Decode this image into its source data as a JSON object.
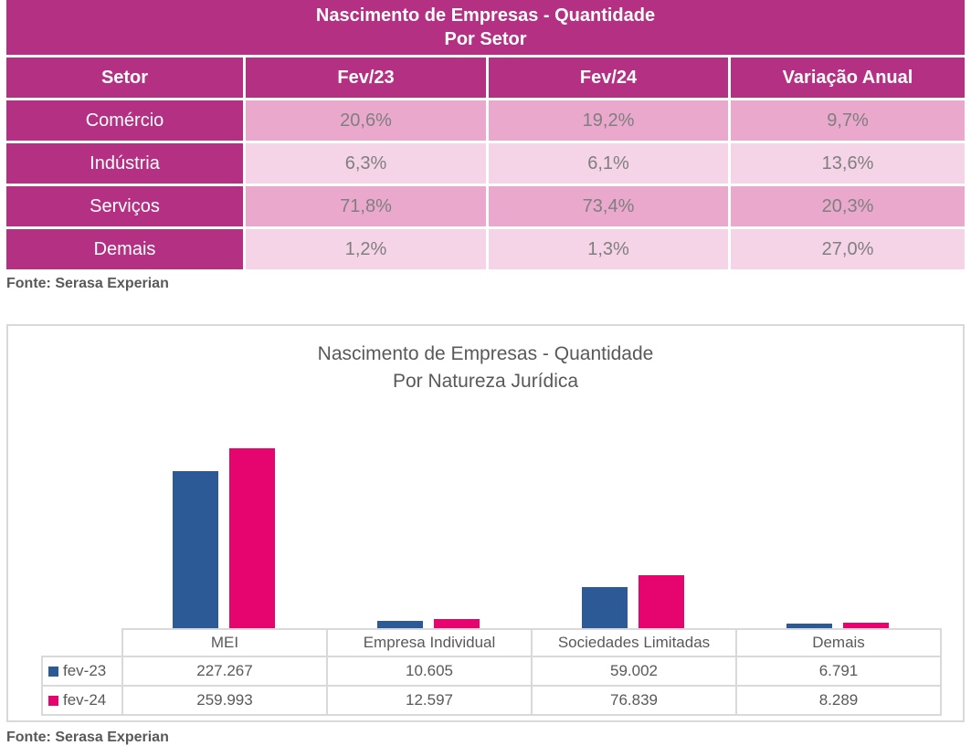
{
  "sector_table": {
    "title": "Nascimento de Empresas - Quantidade",
    "subtitle": "Por Setor",
    "columns": [
      "Setor",
      "Fev/23",
      "Fev/24",
      "Variação Anual"
    ],
    "rows": [
      {
        "label": "Comércio",
        "fev23": "20,6%",
        "fev24": "19,2%",
        "variacao": "9,7%"
      },
      {
        "label": "Indústria",
        "fev23": "6,3%",
        "fev24": "6,1%",
        "variacao": "13,6%"
      },
      {
        "label": "Serviços",
        "fev23": "71,8%",
        "fev24": "73,4%",
        "variacao": "20,3%"
      },
      {
        "label": "Demais",
        "fev23": "1,2%",
        "fev24": "1,3%",
        "variacao": "27,0%"
      }
    ],
    "source": "Fonte: Serasa Experian"
  },
  "chart_section": {
    "source": "Fonte: Serasa Experian"
  },
  "chart_data": {
    "type": "bar",
    "title": "Nascimento de Empresas - Quantidade",
    "subtitle": "Por Natureza Jurídica",
    "categories": [
      "MEI",
      "Empresa Individual",
      "Sociedades Limitadas",
      "Demais"
    ],
    "series": [
      {
        "name": "fev-23",
        "color": "#2C5A96",
        "values": [
          227267,
          10605,
          59002,
          6791
        ],
        "value_labels": [
          "227.267",
          "10.605",
          "59.002",
          "6.791"
        ]
      },
      {
        "name": "fev-24",
        "color": "#E6056F",
        "values": [
          259993,
          12597,
          76839,
          8289
        ],
        "value_labels": [
          "259.993",
          "12.597",
          "76.839",
          "8.289"
        ]
      }
    ],
    "ylim": [
      0,
      260000
    ],
    "grid": false,
    "legend_position": "data-table-left",
    "data_table_shown": true
  },
  "colors": {
    "header_magenta": "#B43082",
    "row_pink_dark": "#EAA8CC",
    "row_pink_light": "#F5D4E8",
    "cell_text_gray": "#7F7F7F",
    "dark_text_gray": "#595959",
    "table_border_gray": "#D9D9D9",
    "bar_blue": "#2C5A96",
    "bar_pink": "#E6056F"
  }
}
